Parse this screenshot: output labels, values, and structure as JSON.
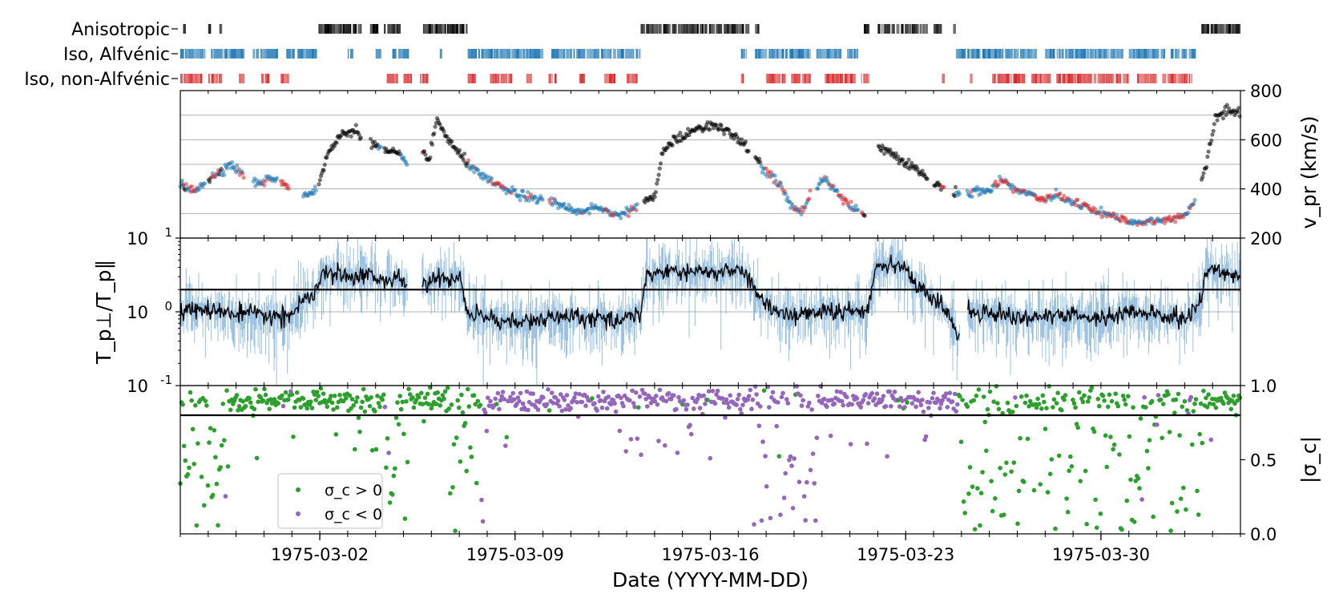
{
  "chart_data": [
    {
      "panel": "classification-strips",
      "type": "event-strips",
      "x_range": [
        "1975-02-25",
        "1975-04-04"
      ],
      "rows": [
        {
          "label": "Anisotropic",
          "color": "#000000",
          "intervals": [
            [
              "1975-02-25.10",
              "1975-02-25.20"
            ],
            [
              "1975-02-26.00",
              "1975-02-26.10"
            ],
            [
              "1975-02-26.40",
              "1975-02-26.50"
            ],
            [
              "1975-02-29.95",
              "1975-03-03.50"
            ],
            [
              "1975-03-03.80",
              "1975-03-04.10"
            ],
            [
              "1975-03-04.30",
              "1975-03-04.90"
            ],
            [
              "1975-03-05.70",
              "1975-03-07.30"
            ],
            [
              "1975-03-13.50",
              "1975-03-17.40"
            ],
            [
              "1975-03-17.60",
              "1975-03-17.80"
            ],
            [
              "1975-03-21.50",
              "1975-03-21.70"
            ],
            [
              "1975-03-22.00",
              "1975-03-23.80"
            ],
            [
              "1975-03-24.00",
              "1975-03-24.30"
            ],
            [
              "1975-03-24.70",
              "1975-03-24.80"
            ],
            [
              "1975-04-02.60",
              "1975-04-04.00"
            ]
          ]
        },
        {
          "label": "Iso, Alfvénic",
          "color": "#1f77b4",
          "intervals": [
            [
              "1975-02-25.00",
              "1975-02-25.90"
            ],
            [
              "1975-02-26.10",
              "1975-02-27.30"
            ],
            [
              "1975-02-27.60",
              "1975-02-28.50"
            ],
            [
              "1975-02-28.80",
              "1975-02-29.10"
            ],
            [
              "1975-03-01.20",
              "1975-03-01.90"
            ],
            [
              "1975-03-03.00",
              "1975-03-03.20"
            ],
            [
              "1975-03-04.00",
              "1975-03-04.20"
            ],
            [
              "1975-03-04.60",
              "1975-03-05.20"
            ],
            [
              "1975-03-06.30",
              "1975-03-06.40"
            ],
            [
              "1975-03-07.30",
              "1975-03-10.00"
            ],
            [
              "1975-03-10.30",
              "1975-03-13.50"
            ],
            [
              "1975-03-17.10",
              "1975-03-17.30"
            ],
            [
              "1975-03-17.60",
              "1975-03-19.60"
            ],
            [
              "1975-03-19.80",
              "1975-03-20.70"
            ],
            [
              "1975-03-20.90",
              "1975-03-21.30"
            ],
            [
              "1975-03-24.80",
              "1975-03-27.70"
            ],
            [
              "1975-03-28.00",
              "1975-03-30.80"
            ],
            [
              "1975-03-31.00",
              "1975-04-01.30"
            ],
            [
              "1975-04-01.50",
              "1975-04-02.40"
            ]
          ]
        },
        {
          "label": "Iso, non-Alfvénic",
          "color": "#d62728",
          "intervals": [
            [
              "1975-02-25.00",
              "1975-02-25.80"
            ],
            [
              "1975-02-26.00",
              "1975-02-26.50"
            ],
            [
              "1975-02-27.10",
              "1975-02-27.30"
            ],
            [
              "1975-02-27.90",
              "1975-02-28.20"
            ],
            [
              "1975-02-28.60",
              "1975-02-28.90"
            ],
            [
              "1975-02-29.80",
              "1975-03-01.00"
            ],
            [
              "1975-03-04.40",
              "1975-03-04.80"
            ],
            [
              "1975-03-05.00",
              "1975-03-05.30"
            ],
            [
              "1975-03-05.60",
              "1975-03-05.90"
            ],
            [
              "1975-03-07.30",
              "1975-03-07.60"
            ],
            [
              "1975-03-08.10",
              "1975-03-08.90"
            ],
            [
              "1975-03-09.40",
              "1975-03-09.60"
            ],
            [
              "1975-03-10.20",
              "1975-03-10.50"
            ],
            [
              "1975-03-11.30",
              "1975-03-11.50"
            ],
            [
              "1975-03-12.20",
              "1975-03-12.60"
            ],
            [
              "1975-03-13.00",
              "1975-03-13.40"
            ],
            [
              "1975-03-17.10",
              "1975-03-17.20"
            ],
            [
              "1975-03-18.00",
              "1975-03-18.70"
            ],
            [
              "1975-03-18.90",
              "1975-03-19.60"
            ],
            [
              "1975-03-20.10",
              "1975-03-21.20"
            ],
            [
              "1975-03-21.40",
              "1975-03-21.70"
            ],
            [
              "1975-03-24.30",
              "1975-03-24.40"
            ],
            [
              "1975-03-25.30",
              "1975-03-25.40"
            ],
            [
              "1975-03-26.10",
              "1975-03-27.30"
            ],
            [
              "1975-03-27.50",
              "1975-03-28.20"
            ],
            [
              "1975-03-28.40",
              "1975-03-31.00"
            ],
            [
              "1975-03-31.30",
              "1975-04-01.00"
            ],
            [
              "1975-04-01.20",
              "1975-04-02.30"
            ]
          ]
        }
      ]
    },
    {
      "panel": "proton-speed",
      "type": "scatter",
      "ylabel": "v_pr (km/s)",
      "ylim": [
        200,
        800
      ],
      "y_ticks": [
        200,
        400,
        600,
        800
      ],
      "y_gridlines": [
        300,
        400,
        500,
        600,
        700
      ],
      "y_axis_side": "right",
      "x_range": [
        "1975-02-25",
        "1975-04-04"
      ],
      "profile_keypoints": [
        [
          "1975-02-25.0",
          420
        ],
        [
          "1975-02-25.5",
          390
        ],
        [
          "1975-02-26.3",
          465
        ],
        [
          "1975-02-26.8",
          500
        ],
        [
          "1975-02-27.3",
          455
        ],
        [
          "1975-02-27.8",
          420
        ],
        [
          "1975-02-28.3",
          445
        ],
        [
          "1975-02-28.7",
          420
        ],
        [
          "1975-03-01.0",
          405
        ],
        [
          "1975-03-01.5",
          375
        ],
        [
          "1975-03-01.9",
          400
        ],
        [
          "1975-03-02.3",
          545
        ],
        [
          "1975-03-02.8",
          625
        ],
        [
          "1975-03-03.3",
          640
        ],
        [
          "1975-03-03.8",
          590
        ],
        [
          "1975-03-04.3",
          555
        ],
        [
          "1975-03-04.8",
          540
        ],
        [
          "1975-03-05.1",
          500
        ],
        [
          "1975-03-05.5",
          610
        ],
        [
          "1975-03-05.9",
          505
        ],
        [
          "1975-03-06.2",
          685
        ],
        [
          "1975-03-06.6",
          600
        ],
        [
          "1975-03-07.0",
          540
        ],
        [
          "1975-03-07.5",
          480
        ],
        [
          "1975-03-08.0",
          435
        ],
        [
          "1975-03-08.6",
          405
        ],
        [
          "1975-03-09.2",
          375
        ],
        [
          "1975-03-09.9",
          358
        ],
        [
          "1975-03-10.6",
          340
        ],
        [
          "1975-03-11.3",
          305
        ],
        [
          "1975-03-12.0",
          330
        ],
        [
          "1975-03-12.5",
          295
        ],
        [
          "1975-03-13.0",
          305
        ],
        [
          "1975-03-13.4",
          340
        ],
        [
          "1975-03-14.0",
          365
        ],
        [
          "1975-03-14.3",
          560
        ],
        [
          "1975-03-14.9",
          610
        ],
        [
          "1975-03-15.5",
          645
        ],
        [
          "1975-03-16.0",
          660
        ],
        [
          "1975-03-16.5",
          640
        ],
        [
          "1975-03-17.0",
          600
        ],
        [
          "1975-03-17.5",
          545
        ],
        [
          "1975-03-18.0",
          470
        ],
        [
          "1975-03-18.5",
          420
        ],
        [
          "1975-03-18.9",
          330
        ],
        [
          "1975-03-19.3",
          300
        ],
        [
          "1975-03-19.7",
          400
        ],
        [
          "1975-03-20.1",
          445
        ],
        [
          "1975-03-20.5",
          390
        ],
        [
          "1975-03-20.9",
          345
        ],
        [
          "1975-03-21.3",
          310
        ],
        [
          "1975-03-21.6",
          300
        ],
        [
          "1975-03-22.0",
          575
        ],
        [
          "1975-03-22.5",
          545
        ],
        [
          "1975-03-23.0",
          510
        ],
        [
          "1975-03-23.5",
          470
        ],
        [
          "1975-03-24.0",
          420
        ],
        [
          "1975-03-24.5",
          400
        ],
        [
          "1975-03-25.0",
          380
        ],
        [
          "1975-03-25.5",
          385
        ],
        [
          "1975-03-26.0",
          395
        ],
        [
          "1975-03-26.4",
          440
        ],
        [
          "1975-03-26.9",
          400
        ],
        [
          "1975-03-27.4",
          380
        ],
        [
          "1975-03-27.9",
          360
        ],
        [
          "1975-03-28.4",
          375
        ],
        [
          "1975-03-28.9",
          350
        ],
        [
          "1975-03-29.4",
          330
        ],
        [
          "1975-03-29.9",
          305
        ],
        [
          "1975-03-30.4",
          290
        ],
        [
          "1975-03-30.9",
          268
        ],
        [
          "1975-03-31.5",
          262
        ],
        [
          "1975-04-01.0",
          270
        ],
        [
          "1975-04-01.5",
          275
        ],
        [
          "1975-04-02.0",
          290
        ],
        [
          "1975-04-02.4",
          360
        ],
        [
          "1975-04-02.8",
          505
        ],
        [
          "1975-04-03.1",
          690
        ],
        [
          "1975-04-03.5",
          720
        ],
        [
          "1975-04-04.0",
          700
        ]
      ],
      "gaps": [
        [
          "1975-02-28.9",
          "1975-02-29.4"
        ],
        [
          "1975-03-05.15",
          "1975-03-05.65"
        ],
        [
          "1975-03-13.4",
          "1975-03-13.6"
        ],
        [
          "1975-03-21.55",
          "1975-03-21.75"
        ],
        [
          "1975-03-24.95",
          "1975-03-25.2"
        ]
      ]
    },
    {
      "panel": "temperature-anisotropy",
      "type": "line",
      "ylabel": "T_p⊥/T_p∥",
      "yscale": "log",
      "ylim": [
        0.1,
        10
      ],
      "y_ticks": [
        0.1,
        1.0,
        10
      ],
      "y_tick_labels": [
        "10^-1",
        "10^0",
        "10^1"
      ],
      "y_gridlines": [
        1.0
      ],
      "threshold": 2.0,
      "x_range": [
        "1975-02-25",
        "1975-04-04"
      ],
      "series": [
        {
          "color": "#000000",
          "kind": "smoothed"
        },
        {
          "color": "#7fb0d8",
          "kind": "raw"
        }
      ],
      "profile_keypoints": [
        [
          "1975-02-25.0",
          1.0
        ],
        [
          "1975-02-26.0",
          1.05
        ],
        [
          "1975-02-27.0",
          0.95
        ],
        [
          "1975-02-28.0",
          0.9
        ],
        [
          "1975-02-28.8",
          0.85
        ],
        [
          "1975-02-29.4",
          1.3
        ],
        [
          "1975-03-01.0",
          1.35
        ],
        [
          "1975-03-01.8",
          1.6
        ],
        [
          "1975-03-02.1",
          3.3
        ],
        [
          "1975-03-03.0",
          3.1
        ],
        [
          "1975-03-03.8",
          3.2
        ],
        [
          "1975-03-04.3",
          2.6
        ],
        [
          "1975-03-04.8",
          2.8
        ],
        [
          "1975-03-05.2",
          2.2
        ],
        [
          "1975-03-05.9",
          2.6
        ],
        [
          "1975-03-06.6",
          2.8
        ],
        [
          "1975-03-07.0",
          3.0
        ],
        [
          "1975-03-07.3",
          0.95
        ],
        [
          "1975-03-08.0",
          0.85
        ],
        [
          "1975-03-09.0",
          0.7
        ],
        [
          "1975-03-10.0",
          0.8
        ],
        [
          "1975-03-11.0",
          0.85
        ],
        [
          "1975-03-12.0",
          0.8
        ],
        [
          "1975-03-12.5",
          0.72
        ],
        [
          "1975-03-13.0",
          0.9
        ],
        [
          "1975-03-13.5",
          0.95
        ],
        [
          "1975-03-13.7",
          3.1
        ],
        [
          "1975-03-14.5",
          3.6
        ],
        [
          "1975-03-15.5",
          3.4
        ],
        [
          "1975-03-16.5",
          3.5
        ],
        [
          "1975-03-17.2",
          3.7
        ],
        [
          "1975-03-17.7",
          1.6
        ],
        [
          "1975-03-18.2",
          1.1
        ],
        [
          "1975-03-19.0",
          0.9
        ],
        [
          "1975-03-20.0",
          1.0
        ],
        [
          "1975-03-21.0",
          1.0
        ],
        [
          "1975-03-21.6",
          1.05
        ],
        [
          "1975-03-22.0",
          4.5
        ],
        [
          "1975-03-22.5",
          4.7
        ],
        [
          "1975-03-23.0",
          3.8
        ],
        [
          "1975-03-23.5",
          2.0
        ],
        [
          "1975-03-24.0",
          1.5
        ],
        [
          "1975-03-24.5",
          1.0
        ],
        [
          "1975-03-24.9",
          0.45
        ],
        [
          "1975-03-25.2",
          1.0
        ],
        [
          "1975-03-26.0",
          1.0
        ],
        [
          "1975-03-27.0",
          0.85
        ],
        [
          "1975-03-28.0",
          0.85
        ],
        [
          "1975-03-29.0",
          0.9
        ],
        [
          "1975-03-30.0",
          0.8
        ],
        [
          "1975-03-31.0",
          1.0
        ],
        [
          "1975-04-01.0",
          0.9
        ],
        [
          "1975-04-02.0",
          0.8
        ],
        [
          "1975-04-02.5",
          1.2
        ],
        [
          "1975-04-02.8",
          3.8
        ],
        [
          "1975-04-03.5",
          3.2
        ],
        [
          "1975-04-04.0",
          3.4
        ]
      ],
      "gaps": [
        [
          "1975-03-05.15",
          "1975-03-05.65"
        ],
        [
          "1975-03-24.95",
          "1975-03-25.2"
        ]
      ]
    },
    {
      "panel": "cross-helicity",
      "type": "scatter",
      "ylabel": "|σ_c|",
      "ylim": [
        0.0,
        1.0
      ],
      "y_ticks": [
        0.0,
        0.5,
        1.0
      ],
      "y_axis_side": "right",
      "threshold": 0.8,
      "x_range": [
        "1975-02-25",
        "1975-04-04"
      ],
      "x_ticks": [
        "1975-03-02",
        "1975-03-09",
        "1975-03-16",
        "1975-03-23",
        "1975-03-30"
      ],
      "xlabel": "Date (YYYY-MM-DD)",
      "series": [
        {
          "name": "σ_c > 0",
          "color": "#2ca02c"
        },
        {
          "name": "σ_c < 0",
          "color": "#9467bd"
        }
      ],
      "sign_intervals": [
        [
          "1975-02-25.0",
          "1975-03-07.8",
          "pos"
        ],
        [
          "1975-03-07.8",
          "1975-03-24.9",
          "neg"
        ],
        [
          "1975-03-24.9",
          "1975-04-04.0",
          "pos"
        ]
      ],
      "spread_intervals": [
        [
          "1975-02-25.0",
          "1975-02-26.8"
        ],
        [
          "1975-03-04.3",
          "1975-03-05.2"
        ],
        [
          "1975-03-06.5",
          "1975-03-08.0"
        ],
        [
          "1975-03-17.5",
          "1975-03-19.9"
        ],
        [
          "1975-03-25.0",
          "1975-04-01.0"
        ],
        [
          "1975-04-01.5",
          "1975-04-02.6"
        ]
      ],
      "legend_position": "lower-left"
    }
  ]
}
